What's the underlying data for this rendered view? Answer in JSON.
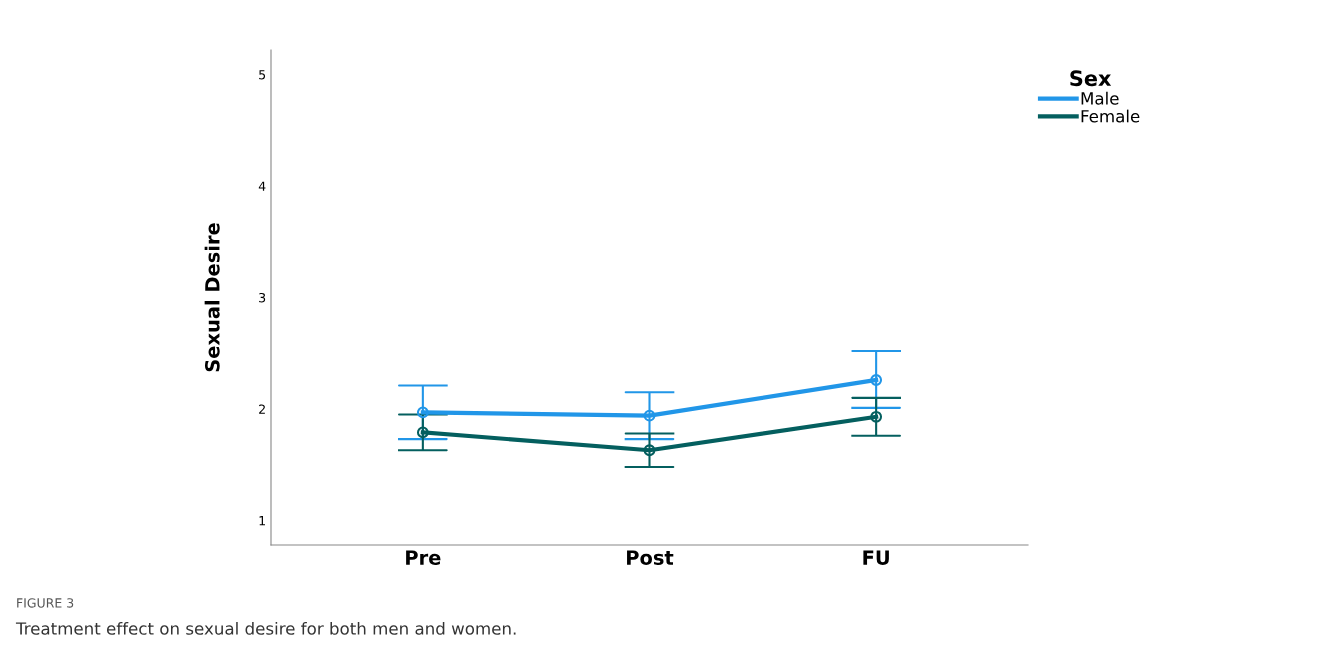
{
  "chart_data": {
    "type": "line",
    "ylabel": "Sexual Desire",
    "legend_title": "Sex",
    "categories": [
      "Pre",
      "Post",
      "FU"
    ],
    "series": [
      {
        "name": "Male",
        "color": "#2196e8",
        "values": [
          1.97,
          1.94,
          2.26
        ],
        "errors": [
          [
            1.73,
            2.21
          ],
          [
            1.73,
            2.15
          ],
          [
            2.01,
            2.52
          ]
        ]
      },
      {
        "name": "Female",
        "color": "#045f5f",
        "values": [
          1.79,
          1.63,
          1.93
        ],
        "errors": [
          [
            1.63,
            1.95
          ],
          [
            1.48,
            1.78
          ],
          [
            1.76,
            2.1
          ]
        ]
      }
    ],
    "ylim": [
      0.78,
      5.22
    ],
    "yticks": [
      1,
      2,
      3,
      4,
      5
    ],
    "grid": false,
    "legend": "top right",
    "marker": "circle",
    "line_style": "solid",
    "annotations": [
      "FIGURE 3",
      "Treatment effect on sexual desire for both men and women."
    ]
  }
}
